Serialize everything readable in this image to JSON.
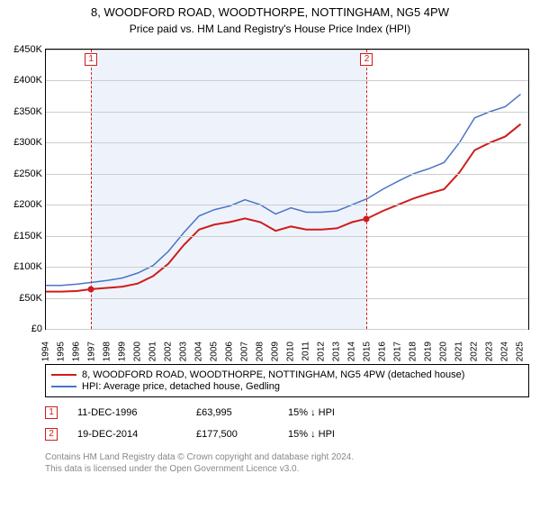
{
  "title_line1": "8, WOODFORD ROAD, WOODTHORPE, NOTTINGHAM, NG5 4PW",
  "title_line2": "Price paid vs. HM Land Registry's House Price Index (HPI)",
  "chart": {
    "type": "line",
    "background_color": "#ffffff",
    "border_color": "#000000",
    "grid_color": "#cccccc",
    "tick_font_size": 11,
    "x": {
      "min": 1994,
      "max": 2025.5,
      "ticks": [
        1994,
        1995,
        1996,
        1997,
        1998,
        1999,
        2000,
        2001,
        2002,
        2003,
        2004,
        2005,
        2006,
        2007,
        2008,
        2009,
        2010,
        2011,
        2012,
        2013,
        2014,
        2015,
        2016,
        2017,
        2018,
        2019,
        2020,
        2021,
        2022,
        2023,
        2024,
        2025
      ]
    },
    "y": {
      "min": 0,
      "max": 450000,
      "ticks": [
        0,
        50000,
        100000,
        150000,
        200000,
        250000,
        300000,
        350000,
        400000,
        450000
      ],
      "labels": [
        "£0",
        "£50K",
        "£100K",
        "£150K",
        "£200K",
        "£250K",
        "£300K",
        "£350K",
        "£400K",
        "£450K"
      ]
    },
    "shade": {
      "from_x": 1996.95,
      "to_x": 2014.95,
      "fill": "#eef3fb"
    },
    "markers": [
      {
        "n": "1",
        "x": 1996.95,
        "y": 63995,
        "color": "#d01c1c"
      },
      {
        "n": "2",
        "x": 2014.95,
        "y": 177500,
        "color": "#d01c1c"
      }
    ],
    "series": [
      {
        "name": "price_paid",
        "label": "8, WOODFORD ROAD, WOODTHORPE, NOTTINGHAM, NG5 4PW (detached house)",
        "color": "#d01c1c",
        "width": 2,
        "points": [
          [
            1994,
            60000
          ],
          [
            1995,
            60000
          ],
          [
            1996,
            61000
          ],
          [
            1996.95,
            63995
          ],
          [
            1998,
            66000
          ],
          [
            1999,
            68000
          ],
          [
            2000,
            73000
          ],
          [
            2001,
            85000
          ],
          [
            2002,
            105000
          ],
          [
            2003,
            135000
          ],
          [
            2004,
            160000
          ],
          [
            2005,
            168000
          ],
          [
            2006,
            172000
          ],
          [
            2007,
            178000
          ],
          [
            2008,
            172000
          ],
          [
            2009,
            158000
          ],
          [
            2010,
            165000
          ],
          [
            2011,
            160000
          ],
          [
            2012,
            160000
          ],
          [
            2013,
            162000
          ],
          [
            2014,
            172000
          ],
          [
            2014.95,
            177500
          ],
          [
            2016,
            190000
          ],
          [
            2017,
            200000
          ],
          [
            2018,
            210000
          ],
          [
            2019,
            218000
          ],
          [
            2020,
            225000
          ],
          [
            2021,
            252000
          ],
          [
            2022,
            288000
          ],
          [
            2023,
            300000
          ],
          [
            2024,
            310000
          ],
          [
            2025,
            330000
          ]
        ]
      },
      {
        "name": "hpi",
        "label": "HPI: Average price, detached house, Gedling",
        "color": "#4a74c9",
        "width": 1.5,
        "points": [
          [
            1994,
            70000
          ],
          [
            1995,
            70000
          ],
          [
            1996,
            72000
          ],
          [
            1997,
            75000
          ],
          [
            1998,
            78000
          ],
          [
            1999,
            82000
          ],
          [
            2000,
            90000
          ],
          [
            2001,
            102000
          ],
          [
            2002,
            125000
          ],
          [
            2003,
            155000
          ],
          [
            2004,
            182000
          ],
          [
            2005,
            192000
          ],
          [
            2006,
            198000
          ],
          [
            2007,
            208000
          ],
          [
            2008,
            200000
          ],
          [
            2009,
            185000
          ],
          [
            2010,
            195000
          ],
          [
            2011,
            188000
          ],
          [
            2012,
            188000
          ],
          [
            2013,
            190000
          ],
          [
            2014,
            200000
          ],
          [
            2015,
            210000
          ],
          [
            2016,
            225000
          ],
          [
            2017,
            238000
          ],
          [
            2018,
            250000
          ],
          [
            2019,
            258000
          ],
          [
            2020,
            268000
          ],
          [
            2021,
            300000
          ],
          [
            2022,
            340000
          ],
          [
            2023,
            350000
          ],
          [
            2024,
            358000
          ],
          [
            2025,
            378000
          ]
        ]
      }
    ]
  },
  "legend": [
    {
      "color": "#d01c1c",
      "label": "8, WOODFORD ROAD, WOODTHORPE, NOTTINGHAM, NG5 4PW (detached house)"
    },
    {
      "color": "#4a74c9",
      "label": "HPI: Average price, detached house, Gedling"
    }
  ],
  "sales": [
    {
      "n": "1",
      "date": "11-DEC-1996",
      "price": "£63,995",
      "pct": "15% ↓ HPI",
      "color": "#d01c1c"
    },
    {
      "n": "2",
      "date": "19-DEC-2014",
      "price": "£177,500",
      "pct": "15% ↓ HPI",
      "color": "#d01c1c"
    }
  ],
  "footer_line1": "Contains HM Land Registry data © Crown copyright and database right 2024.",
  "footer_line2": "This data is licensed under the Open Government Licence v3.0.",
  "footer_color": "#888888"
}
